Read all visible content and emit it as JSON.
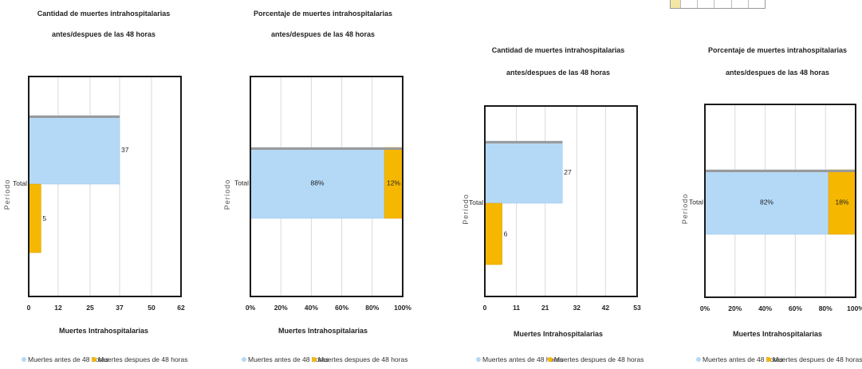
{
  "colors": {
    "before": "#b4d9f7",
    "after": "#f5b700",
    "frame": "#1a1a1a",
    "cap": "#9a9a9a",
    "grid": "#d9d9d9"
  },
  "chart_data": [
    {
      "type": "bar",
      "orientation": "horizontal",
      "title_lines": [
        "Cantidad de muertes intrahospitalarias",
        "antes/despues de las 48 horas"
      ],
      "xlabel": "Muertes Intrahospitalarias",
      "ylabel": "Período",
      "categories": [
        "Total"
      ],
      "series": [
        {
          "name": "Muertes antes de 48 horas",
          "values": [
            37
          ],
          "labels": [
            "37"
          ]
        },
        {
          "name": "Muertes despues de 48 horas",
          "values": [
            5
          ],
          "labels": [
            "5"
          ]
        }
      ],
      "xlim": [
        0,
        62
      ],
      "x_ticks": [
        0,
        12,
        25,
        37,
        50,
        62
      ],
      "x_tick_labels": [
        "0",
        "12",
        "25",
        "37",
        "50",
        "62"
      ],
      "grid": true,
      "legend_position": "bottom"
    },
    {
      "type": "bar",
      "orientation": "horizontal",
      "stacked": true,
      "title_lines": [
        "Porcentaje de muertes intrahospitalarias",
        "antes/despues de las 48 horas"
      ],
      "xlabel": "Muertes Intrahospitalarias",
      "ylabel": "Período",
      "categories": [
        "Total"
      ],
      "series": [
        {
          "name": "Muertes antes de 48 horas",
          "values": [
            88
          ],
          "labels": [
            "88%"
          ]
        },
        {
          "name": "Muertes despues de 48 horas",
          "values": [
            12
          ],
          "labels": [
            "12%"
          ]
        }
      ],
      "xlim": [
        0,
        100
      ],
      "x_ticks": [
        0,
        20,
        40,
        60,
        80,
        100
      ],
      "x_tick_labels": [
        "0%",
        "20%",
        "40%",
        "60%",
        "80%",
        "100%"
      ],
      "grid": true,
      "legend_position": "bottom"
    },
    {
      "type": "bar",
      "orientation": "horizontal",
      "title_lines": [
        "Cantidad de muertes intrahospitalarias",
        "antes/despues de las 48 horas"
      ],
      "xlabel": "Muertes Intrahospitalarias",
      "ylabel": "Período",
      "categories": [
        "Total"
      ],
      "series": [
        {
          "name": "Muertes antes de 48 horas",
          "values": [
            27
          ],
          "labels": [
            "27"
          ]
        },
        {
          "name": "Muertes despues de 48 horas",
          "values": [
            6
          ],
          "labels": [
            "6"
          ]
        }
      ],
      "xlim": [
        0,
        53
      ],
      "x_ticks": [
        0,
        11,
        21,
        32,
        42,
        53
      ],
      "x_tick_labels": [
        "0",
        "11",
        "21",
        "32",
        "42",
        "53"
      ],
      "grid": true,
      "legend_position": "bottom"
    },
    {
      "type": "bar",
      "orientation": "horizontal",
      "stacked": true,
      "title_lines": [
        "Porcentaje de muertes intrahospitalarias",
        "antes/despues de las 48 horas"
      ],
      "xlabel": "Muertes Intrahospitalarias",
      "ylabel": "Período",
      "categories": [
        "Total"
      ],
      "series": [
        {
          "name": "Muertes antes de 48 horas",
          "values": [
            82
          ],
          "labels": [
            "82%"
          ]
        },
        {
          "name": "Muertes despues de 48 horas",
          "values": [
            18
          ],
          "labels": [
            "18%"
          ]
        }
      ],
      "xlim": [
        0,
        100
      ],
      "x_ticks": [
        0,
        20,
        40,
        60,
        80,
        100
      ],
      "x_tick_labels": [
        "0%",
        "20%",
        "40%",
        "60%",
        "80%",
        "100%"
      ],
      "grid": true,
      "legend_position": "bottom"
    }
  ]
}
